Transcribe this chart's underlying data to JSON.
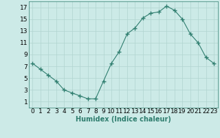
{
  "x": [
    0,
    1,
    2,
    3,
    4,
    5,
    6,
    7,
    8,
    9,
    10,
    11,
    12,
    13,
    14,
    15,
    16,
    17,
    18,
    19,
    20,
    21,
    22,
    23
  ],
  "y": [
    7.5,
    6.5,
    5.5,
    4.5,
    3.0,
    2.5,
    2.0,
    1.5,
    1.5,
    4.5,
    7.5,
    9.5,
    12.5,
    13.5,
    15.2,
    16.0,
    16.2,
    17.2,
    16.5,
    15.0,
    12.5,
    11.0,
    8.5,
    7.5
  ],
  "line_color": "#2e7d6e",
  "marker": "+",
  "marker_size": 4,
  "bg_color": "#cceae7",
  "grid_color": "#b0d4d0",
  "xlabel": "Humidex (Indice chaleur)",
  "ylim": [
    0,
    18
  ],
  "xlim": [
    -0.5,
    23.5
  ],
  "yticks": [
    1,
    3,
    5,
    7,
    9,
    11,
    13,
    15,
    17
  ],
  "xticks": [
    0,
    1,
    2,
    3,
    4,
    5,
    6,
    7,
    8,
    9,
    10,
    11,
    12,
    13,
    14,
    15,
    16,
    17,
    18,
    19,
    20,
    21,
    22,
    23
  ],
  "label_fontsize": 7,
  "tick_fontsize": 6.5
}
